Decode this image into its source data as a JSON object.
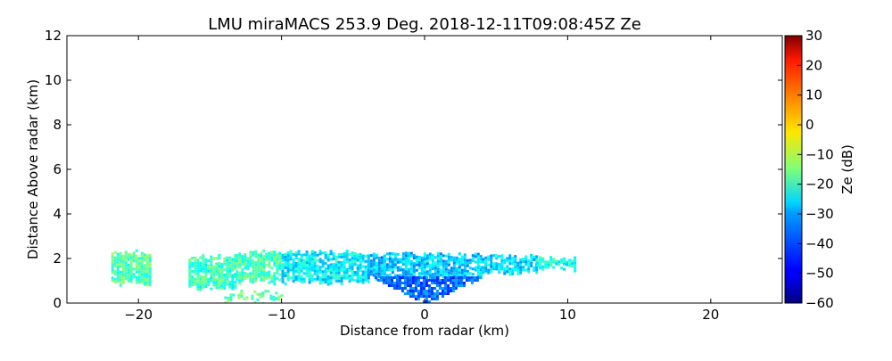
{
  "chart_data": {
    "type": "heatmap",
    "title": "LMU miraMACS 253.9 Deg. 2018-12-11T09:08:45Z  Ze",
    "xlabel": "Distance from radar (km)",
    "ylabel": "Distance Above radar  (km)",
    "xlim": [
      -25,
      25
    ],
    "ylim": [
      0,
      12
    ],
    "xticks": [
      -20,
      -10,
      0,
      10,
      20
    ],
    "xtick_labels": [
      "−20",
      "−10",
      "0",
      "10",
      "20"
    ],
    "yticks": [
      0,
      2,
      4,
      6,
      8,
      10,
      12
    ],
    "ytick_labels": [
      "0",
      "2",
      "4",
      "6",
      "8",
      "10",
      "12"
    ],
    "colorbar": {
      "label": "Ze (dB)",
      "range": [
        -60,
        30
      ],
      "ticks": [
        -60,
        -50,
        -40,
        -30,
        -20,
        -10,
        0,
        10,
        20,
        30
      ],
      "tick_labels": [
        "−60",
        "−50",
        "−40",
        "−30",
        "−20",
        "−10",
        "0",
        "10",
        "20",
        "30"
      ],
      "colormap": "jet"
    },
    "echo_regions": [
      {
        "name": "echo-band-far-left",
        "x": [
          -21.9,
          -19.2
        ],
        "y": [
          0.9,
          2.3
        ],
        "ze_mean": -19
      },
      {
        "name": "echo-band-left",
        "x": [
          -16.5,
          -13.2
        ],
        "y": [
          0.7,
          2.1
        ],
        "ze_mean": -21
      },
      {
        "name": "echo-band-left-mid",
        "x": [
          -13.2,
          -10.0
        ],
        "y": [
          1.0,
          2.3
        ],
        "ze_mean": -20
      },
      {
        "name": "echo-band-mid",
        "x": [
          -10.0,
          -4.0
        ],
        "y": [
          1.0,
          2.3
        ],
        "ze_mean": -27
      },
      {
        "name": "echo-band-center",
        "x": [
          -4.0,
          4.0
        ],
        "y": [
          1.2,
          2.2
        ],
        "ze_mean": -32
      },
      {
        "name": "echo-cone-near-radar",
        "x": [
          -3.5,
          4.0
        ],
        "y": [
          0.0,
          1.2
        ],
        "ze_mean": -40
      },
      {
        "name": "echo-band-right",
        "x": [
          4.0,
          7.8
        ],
        "y": [
          1.4,
          2.1
        ],
        "ze_mean": -30
      },
      {
        "name": "echo-tail-right",
        "x": [
          7.8,
          10.5
        ],
        "y": [
          1.6,
          2.0
        ],
        "ze_mean": -25
      },
      {
        "name": "echo-fragments-low",
        "x": [
          -14.0,
          -10.0
        ],
        "y": [
          0.1,
          0.5
        ],
        "ze_mean": -18
      }
    ]
  }
}
